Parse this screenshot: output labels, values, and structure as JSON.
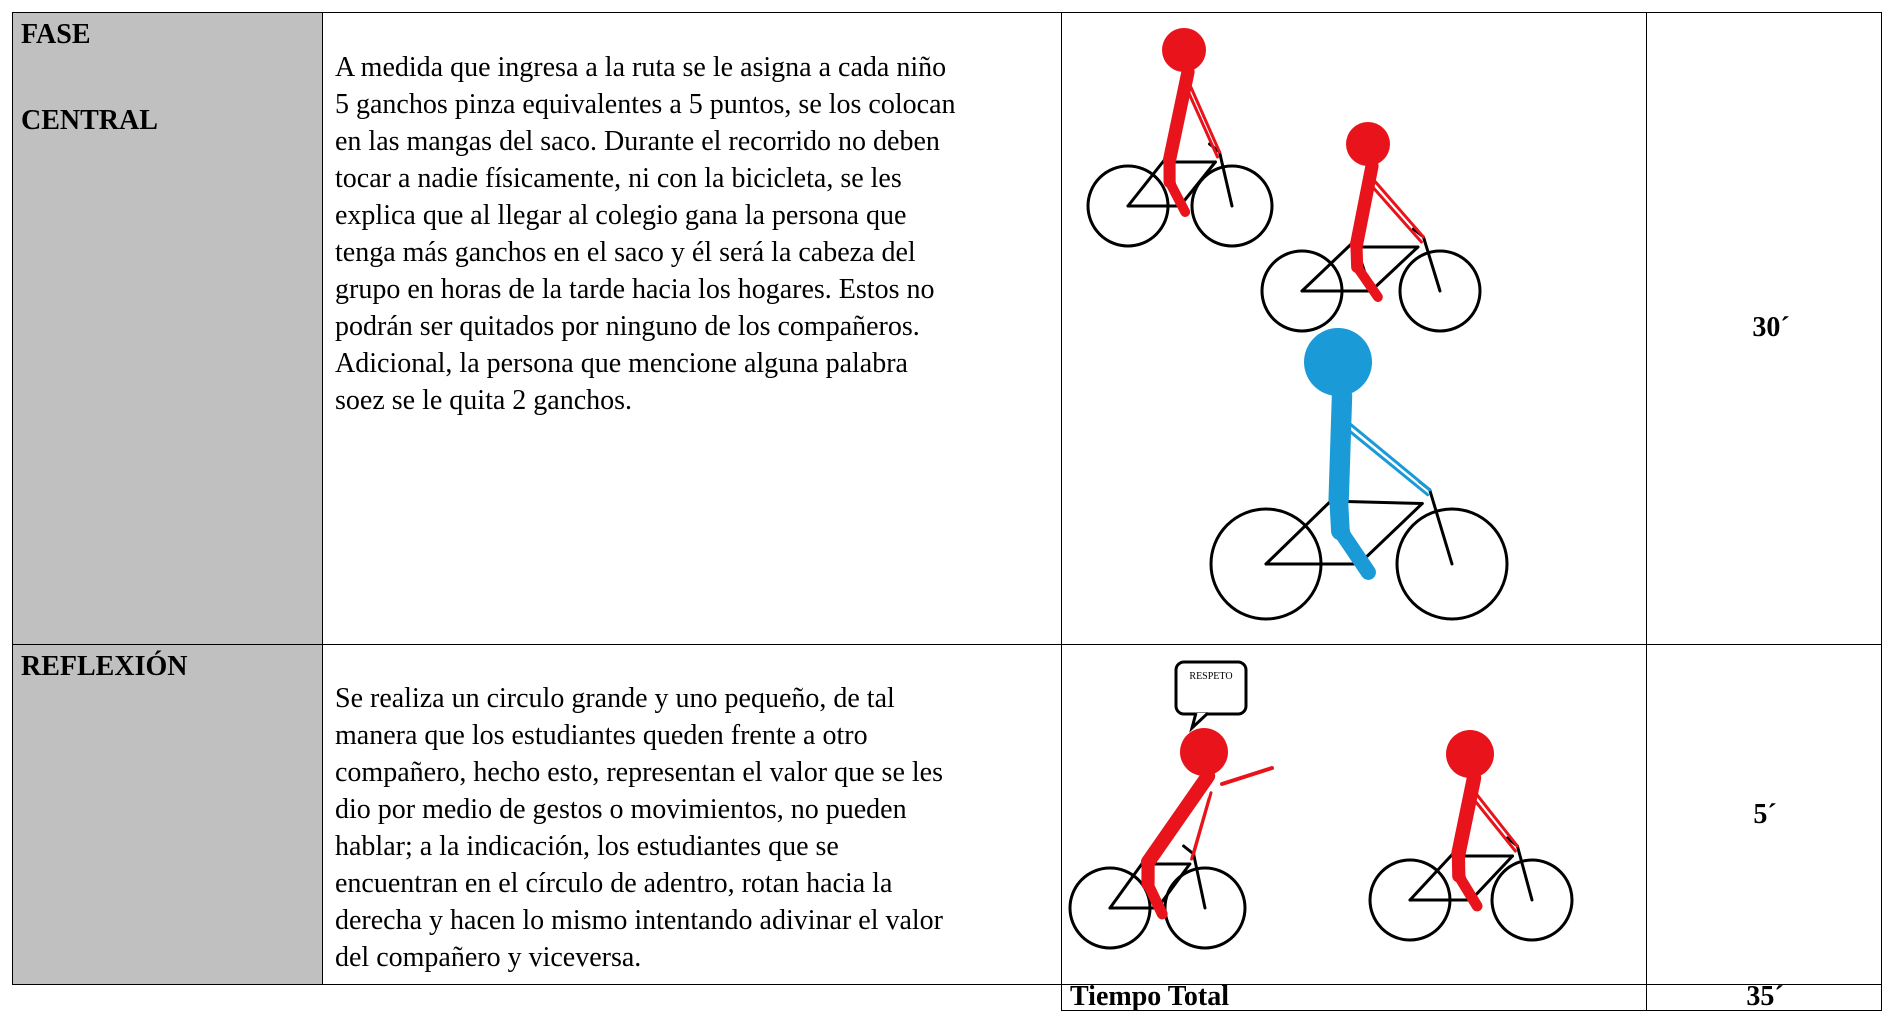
{
  "table": {
    "rows": [
      {
        "phase": [
          "FASE",
          "CENTRAL"
        ],
        "description": [
          "A medida que ingresa a la ruta se le asigna a cada niño",
          "5 ganchos pinza equivalentes a 5 puntos, se los colocan",
          "en las mangas del saco. Durante el recorrido no deben",
          "tocar a nadie físicamente, ni con la bicicleta, se les",
          "explica que al llegar al colegio gana la persona que",
          "tenga más ganchos en el saco y él será la cabeza del",
          "grupo en horas de la tarde hacia los hogares. Estos no",
          "podrán ser quitados por ninguno de los compañeros.",
          "Adicional, la persona que mencione alguna palabra",
          "soez se le quita 2 ganchos."
        ],
        "time": "30´"
      },
      {
        "phase": [
          "REFLEXIÓN"
        ],
        "description": [
          "Se realiza un circulo grande y uno pequeño, de tal",
          "manera que los estudiantes queden frente a otro",
          "compañero, hecho esto, representan el valor que se les",
          "dio por medio de gestos o movimientos, no pueden",
          "hablar; a la indicación, los estudiantes que se",
          "encuentran en el círculo de adentro, rotan hacia la",
          "derecha y hacen lo mismo intentando adivinar el valor",
          "del compañero y viceversa."
        ],
        "time": "5´",
        "speech_bubble": "RESPETO"
      }
    ],
    "total": {
      "label": "Tiempo Total",
      "time": "35´"
    }
  }
}
